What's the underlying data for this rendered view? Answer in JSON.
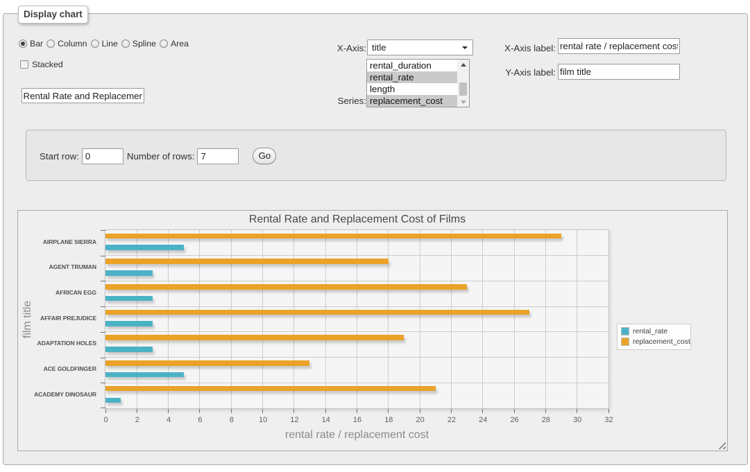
{
  "panel": {
    "legend": "Display chart",
    "chart_types": [
      {
        "label": "Bar",
        "selected": true
      },
      {
        "label": "Column",
        "selected": false
      },
      {
        "label": "Line",
        "selected": false
      },
      {
        "label": "Spline",
        "selected": false
      },
      {
        "label": "Area",
        "selected": false
      }
    ],
    "stacked": {
      "label": "Stacked",
      "checked": false
    },
    "chart_title_input": {
      "value": "Rental Rate and Replacement Cost of Films"
    },
    "x_axis": {
      "label": "X-Axis:",
      "selected_option": "title"
    },
    "series_picker": {
      "label": "Series:",
      "visible_options": [
        {
          "label": "rental_duration",
          "selected": false
        },
        {
          "label": "rental_rate",
          "selected": true
        },
        {
          "label": "length",
          "selected": false
        },
        {
          "label": "replacement_cost",
          "selected": true
        }
      ]
    },
    "x_axis_label_field": {
      "label": "X-Axis label:",
      "value": "rental rate / replacement cost"
    },
    "y_axis_label_field": {
      "label": "Y-Axis label:",
      "value": "film title"
    }
  },
  "toolbar": {
    "start_row_label": "Start row:",
    "start_row_value": "0",
    "num_rows_label": "Number of rows:",
    "num_rows_value": "7",
    "go_label": "Go"
  },
  "chart_data": {
    "type": "bar",
    "orientation": "horizontal",
    "title": "Rental Rate and Replacement Cost of Films",
    "xlabel": "rental rate / replacement cost",
    "ylabel": "film title",
    "categories": [
      "AIRPLANE SIERRA",
      "AGENT TRUMAN",
      "AFRICAN EGG",
      "AFFAIR PREJUDICE",
      "ADAPTATION HOLES",
      "ACE GOLDFINGER",
      "ACADEMY DINOSAUR"
    ],
    "series": [
      {
        "name": "rental_rate",
        "color": "#4bb2c5",
        "values": [
          4.99,
          2.99,
          2.99,
          2.99,
          2.99,
          4.99,
          0.99
        ]
      },
      {
        "name": "replacement_cost",
        "color": "#eaa228",
        "values": [
          28.99,
          17.99,
          22.99,
          26.99,
          18.99,
          12.99,
          20.99
        ]
      }
    ],
    "xlim": [
      0,
      32
    ],
    "x_tick_step": 2,
    "grid": true,
    "legend_position": "right"
  }
}
